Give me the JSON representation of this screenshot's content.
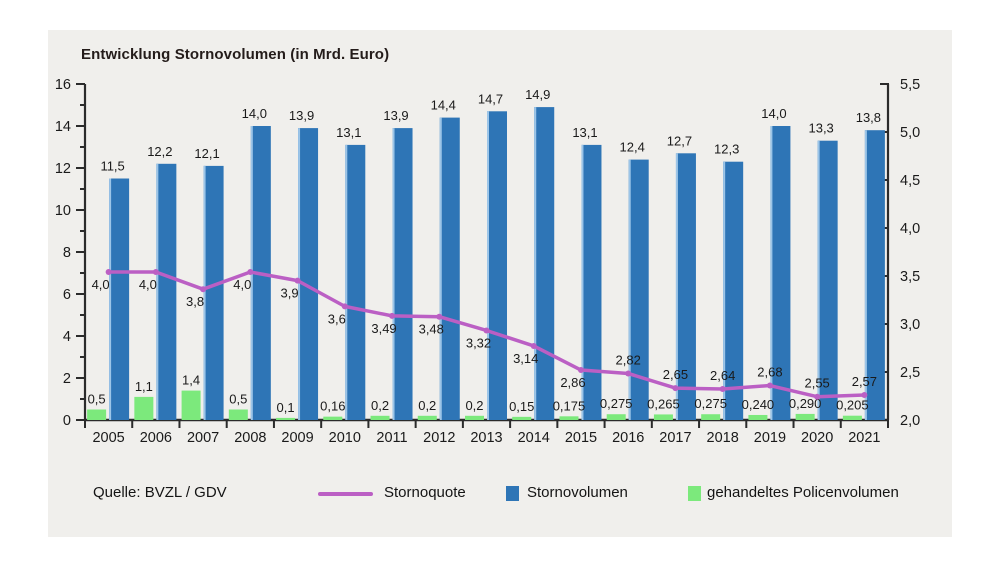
{
  "chart_data": {
    "type": "bar",
    "title": "Entwicklung Stornovolumen (in Mrd. Euro)",
    "categories": [
      "2005",
      "2006",
      "2007",
      "2008",
      "2009",
      "2010",
      "2011",
      "2012",
      "2013",
      "2014",
      "2015",
      "2016",
      "2017",
      "2018",
      "2019",
      "2020",
      "2021"
    ],
    "series": [
      {
        "name": "Stornovolumen",
        "type": "bar",
        "axis": "left",
        "color": "#2E75B6",
        "highlight_color": "#9CC5E8",
        "values": [
          11.5,
          12.2,
          12.1,
          14.0,
          13.9,
          13.1,
          13.9,
          14.4,
          14.7,
          14.9,
          13.1,
          12.4,
          12.7,
          12.3,
          14.0,
          13.3,
          13.8
        ],
        "labels": [
          "11,5",
          "12,2",
          "12,1",
          "14,0",
          "13,9",
          "13,1",
          "13,9",
          "14,4",
          "14,7",
          "14,9",
          "13,1",
          "12,4",
          "12,7",
          "12,3",
          "14,0",
          "13,3",
          "13,8"
        ]
      },
      {
        "name": "gehandeltes Policenvolumen",
        "type": "bar",
        "axis": "left",
        "color": "#7CE97C",
        "values": [
          0.5,
          1.1,
          1.4,
          0.5,
          0.1,
          0.16,
          0.2,
          0.2,
          0.2,
          0.15,
          0.175,
          0.275,
          0.265,
          0.275,
          0.24,
          0.29,
          0.205
        ],
        "labels": [
          "0,5",
          "1,1",
          "1,4",
          "0,5",
          "0,1",
          "0,16",
          "0,2",
          "0,2",
          "0,2",
          "0,15",
          "0,175",
          "0,275",
          "0,265",
          "0,275",
          "0,240",
          "0,290",
          "0,205"
        ]
      },
      {
        "name": "Stornoquote",
        "type": "line",
        "axis": "right",
        "color": "#BB5FC4",
        "values": [
          4.0,
          4.0,
          3.8,
          4.0,
          3.9,
          3.6,
          3.49,
          3.48,
          3.32,
          3.14,
          2.86,
          2.82,
          2.65,
          2.64,
          2.68,
          2.55,
          2.57
        ],
        "labels": [
          "4,0",
          "4,0",
          "3,8",
          "4,0",
          "3,9",
          "3,6",
          "3,49",
          "3,48",
          "3,32",
          "3,14",
          "2,86",
          "2,82",
          "2,65",
          "2,64",
          "2,68",
          "2,55",
          "2,57"
        ],
        "label_side": [
          "below",
          "below",
          "below",
          "below",
          "below",
          "below",
          "below",
          "below",
          "below",
          "below",
          "below",
          "above",
          "above",
          "above",
          "above",
          "above",
          "above"
        ]
      }
    ],
    "left_axis": {
      "range": [
        0,
        16
      ],
      "tick_step": 2,
      "labels": [
        "0",
        "2",
        "4",
        "6",
        "8",
        "10",
        "12",
        "14",
        "16"
      ]
    },
    "right_axis": {
      "range": [
        2.0,
        5.5
      ],
      "tick_step": 0.5,
      "labels": [
        "2,0",
        "2,5",
        "3,0",
        "3,5",
        "4,0",
        "4,5",
        "5,0",
        "5,5"
      ]
    },
    "grid": false,
    "legend": {
      "position": "bottom",
      "items": [
        {
          "label": "Stornoquote",
          "swatch": "line",
          "color": "#BB5FC4"
        },
        {
          "label": "Stornovolumen",
          "swatch": "square",
          "color": "#2E75B6"
        },
        {
          "label": "gehandeltes Policenvolumen",
          "swatch": "square",
          "color": "#7CE97C"
        }
      ]
    },
    "source": "Quelle: BVZL / GDV"
  }
}
